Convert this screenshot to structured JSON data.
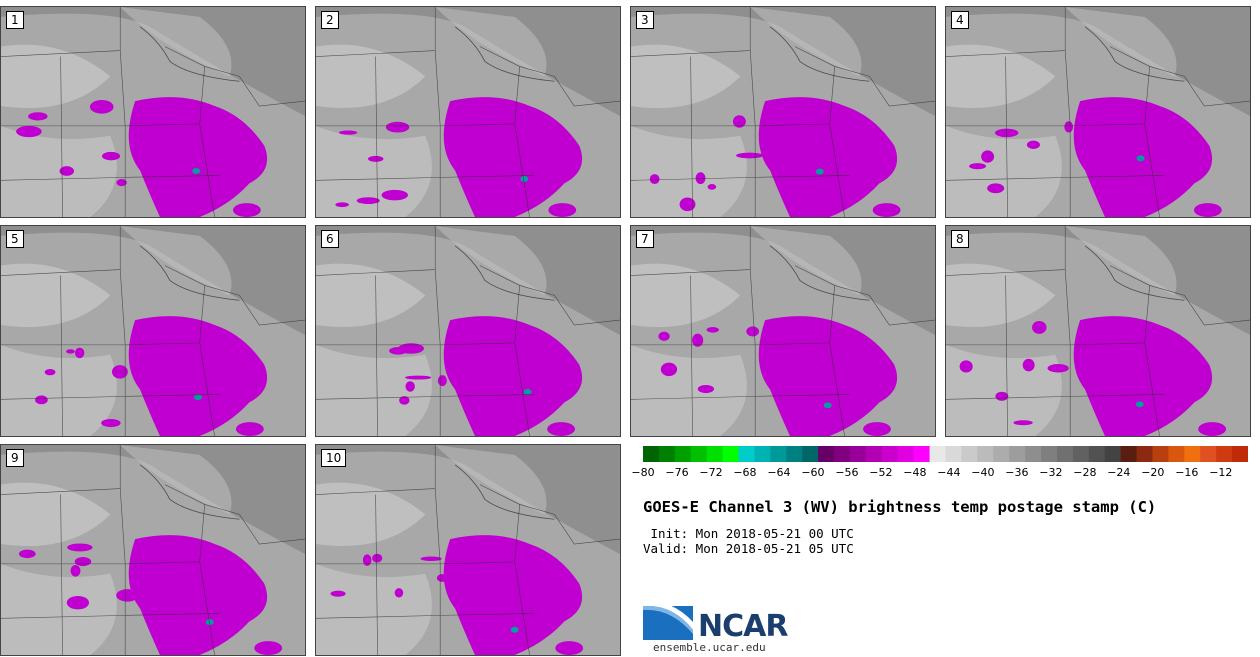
{
  "panels": [
    {
      "label": "1"
    },
    {
      "label": "2"
    },
    {
      "label": "3"
    },
    {
      "label": "4"
    },
    {
      "label": "5"
    },
    {
      "label": "6"
    },
    {
      "label": "7"
    },
    {
      "label": "8"
    },
    {
      "label": "9"
    },
    {
      "label": "10"
    }
  ],
  "colorbar": {
    "ticks": [
      "−80",
      "−76",
      "−72",
      "−68",
      "−64",
      "−60",
      "−56",
      "−52",
      "−48",
      "−44",
      "−40",
      "−36",
      "−32",
      "−28",
      "−24",
      "−20",
      "−16",
      "−12"
    ],
    "colors": [
      "#006400",
      "#008000",
      "#00a000",
      "#00c000",
      "#00e000",
      "#00ff00",
      "#00cccc",
      "#00b3b3",
      "#009999",
      "#008080",
      "#006666",
      "#660066",
      "#800080",
      "#990099",
      "#b300b3",
      "#cc00cc",
      "#e000e0",
      "#ff00ff",
      "#e8e8e8",
      "#d9d9d9",
      "#cacaca",
      "#bbbbbb",
      "#acacac",
      "#9d9d9d",
      "#8e8e8e",
      "#7f7f7f",
      "#707070",
      "#616161",
      "#525252",
      "#434343",
      "#5a1e10",
      "#8b2a10",
      "#b8400f",
      "#d9570c",
      "#f07010",
      "#e05020",
      "#d03a10",
      "#c02a08"
    ]
  },
  "title": "GOES-E Channel 3 (WV) brightness temp postage stamp (C)",
  "init": " Init: Mon 2018-05-21 00 UTC",
  "valid": "Valid: Mon 2018-05-21 05 UTC",
  "logo": {
    "text": "NCAR",
    "site": "ensemble.ucar.edu"
  },
  "colors": {
    "magenta": "#c000d0",
    "teal": "#00a0a0",
    "gray_light": "#c4c4c4",
    "gray_mid": "#a8a8a8",
    "gray_dark": "#7e7e7e"
  }
}
